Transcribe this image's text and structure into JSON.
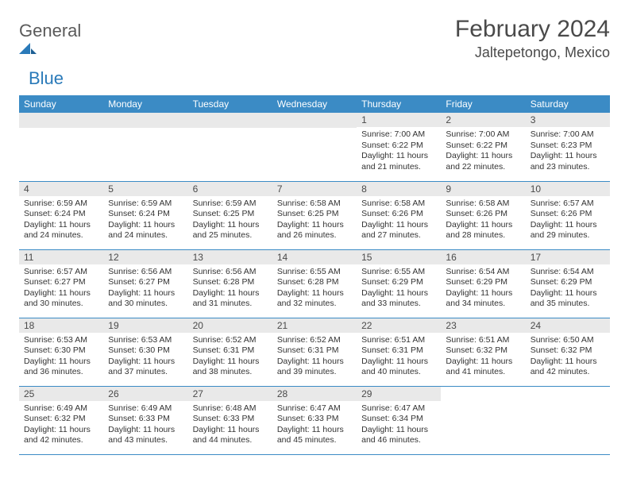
{
  "logo": {
    "text1": "General",
    "text2": "Blue"
  },
  "title": "February 2024",
  "location": "Jaltepetongo, Mexico",
  "colors": {
    "header_bg": "#3b8bc5",
    "header_fg": "#ffffff",
    "daynum_bg": "#e9e9e9",
    "border": "#3b8bc5",
    "text": "#333333",
    "title_color": "#4a4a4a",
    "logo_gray": "#5a5a5a",
    "logo_blue": "#2a7ab9"
  },
  "weekdays": [
    "Sunday",
    "Monday",
    "Tuesday",
    "Wednesday",
    "Thursday",
    "Friday",
    "Saturday"
  ],
  "leading_blank": 4,
  "days": [
    {
      "n": "1",
      "sunrise": "7:00 AM",
      "sunset": "6:22 PM",
      "daylight": "11 hours and 21 minutes."
    },
    {
      "n": "2",
      "sunrise": "7:00 AM",
      "sunset": "6:22 PM",
      "daylight": "11 hours and 22 minutes."
    },
    {
      "n": "3",
      "sunrise": "7:00 AM",
      "sunset": "6:23 PM",
      "daylight": "11 hours and 23 minutes."
    },
    {
      "n": "4",
      "sunrise": "6:59 AM",
      "sunset": "6:24 PM",
      "daylight": "11 hours and 24 minutes."
    },
    {
      "n": "5",
      "sunrise": "6:59 AM",
      "sunset": "6:24 PM",
      "daylight": "11 hours and 24 minutes."
    },
    {
      "n": "6",
      "sunrise": "6:59 AM",
      "sunset": "6:25 PM",
      "daylight": "11 hours and 25 minutes."
    },
    {
      "n": "7",
      "sunrise": "6:58 AM",
      "sunset": "6:25 PM",
      "daylight": "11 hours and 26 minutes."
    },
    {
      "n": "8",
      "sunrise": "6:58 AM",
      "sunset": "6:26 PM",
      "daylight": "11 hours and 27 minutes."
    },
    {
      "n": "9",
      "sunrise": "6:58 AM",
      "sunset": "6:26 PM",
      "daylight": "11 hours and 28 minutes."
    },
    {
      "n": "10",
      "sunrise": "6:57 AM",
      "sunset": "6:26 PM",
      "daylight": "11 hours and 29 minutes."
    },
    {
      "n": "11",
      "sunrise": "6:57 AM",
      "sunset": "6:27 PM",
      "daylight": "11 hours and 30 minutes."
    },
    {
      "n": "12",
      "sunrise": "6:56 AM",
      "sunset": "6:27 PM",
      "daylight": "11 hours and 30 minutes."
    },
    {
      "n": "13",
      "sunrise": "6:56 AM",
      "sunset": "6:28 PM",
      "daylight": "11 hours and 31 minutes."
    },
    {
      "n": "14",
      "sunrise": "6:55 AM",
      "sunset": "6:28 PM",
      "daylight": "11 hours and 32 minutes."
    },
    {
      "n": "15",
      "sunrise": "6:55 AM",
      "sunset": "6:29 PM",
      "daylight": "11 hours and 33 minutes."
    },
    {
      "n": "16",
      "sunrise": "6:54 AM",
      "sunset": "6:29 PM",
      "daylight": "11 hours and 34 minutes."
    },
    {
      "n": "17",
      "sunrise": "6:54 AM",
      "sunset": "6:29 PM",
      "daylight": "11 hours and 35 minutes."
    },
    {
      "n": "18",
      "sunrise": "6:53 AM",
      "sunset": "6:30 PM",
      "daylight": "11 hours and 36 minutes."
    },
    {
      "n": "19",
      "sunrise": "6:53 AM",
      "sunset": "6:30 PM",
      "daylight": "11 hours and 37 minutes."
    },
    {
      "n": "20",
      "sunrise": "6:52 AM",
      "sunset": "6:31 PM",
      "daylight": "11 hours and 38 minutes."
    },
    {
      "n": "21",
      "sunrise": "6:52 AM",
      "sunset": "6:31 PM",
      "daylight": "11 hours and 39 minutes."
    },
    {
      "n": "22",
      "sunrise": "6:51 AM",
      "sunset": "6:31 PM",
      "daylight": "11 hours and 40 minutes."
    },
    {
      "n": "23",
      "sunrise": "6:51 AM",
      "sunset": "6:32 PM",
      "daylight": "11 hours and 41 minutes."
    },
    {
      "n": "24",
      "sunrise": "6:50 AM",
      "sunset": "6:32 PM",
      "daylight": "11 hours and 42 minutes."
    },
    {
      "n": "25",
      "sunrise": "6:49 AM",
      "sunset": "6:32 PM",
      "daylight": "11 hours and 42 minutes."
    },
    {
      "n": "26",
      "sunrise": "6:49 AM",
      "sunset": "6:33 PM",
      "daylight": "11 hours and 43 minutes."
    },
    {
      "n": "27",
      "sunrise": "6:48 AM",
      "sunset": "6:33 PM",
      "daylight": "11 hours and 44 minutes."
    },
    {
      "n": "28",
      "sunrise": "6:47 AM",
      "sunset": "6:33 PM",
      "daylight": "11 hours and 45 minutes."
    },
    {
      "n": "29",
      "sunrise": "6:47 AM",
      "sunset": "6:34 PM",
      "daylight": "11 hours and 46 minutes."
    }
  ],
  "labels": {
    "sunrise": "Sunrise:",
    "sunset": "Sunset:",
    "daylight": "Daylight:"
  }
}
